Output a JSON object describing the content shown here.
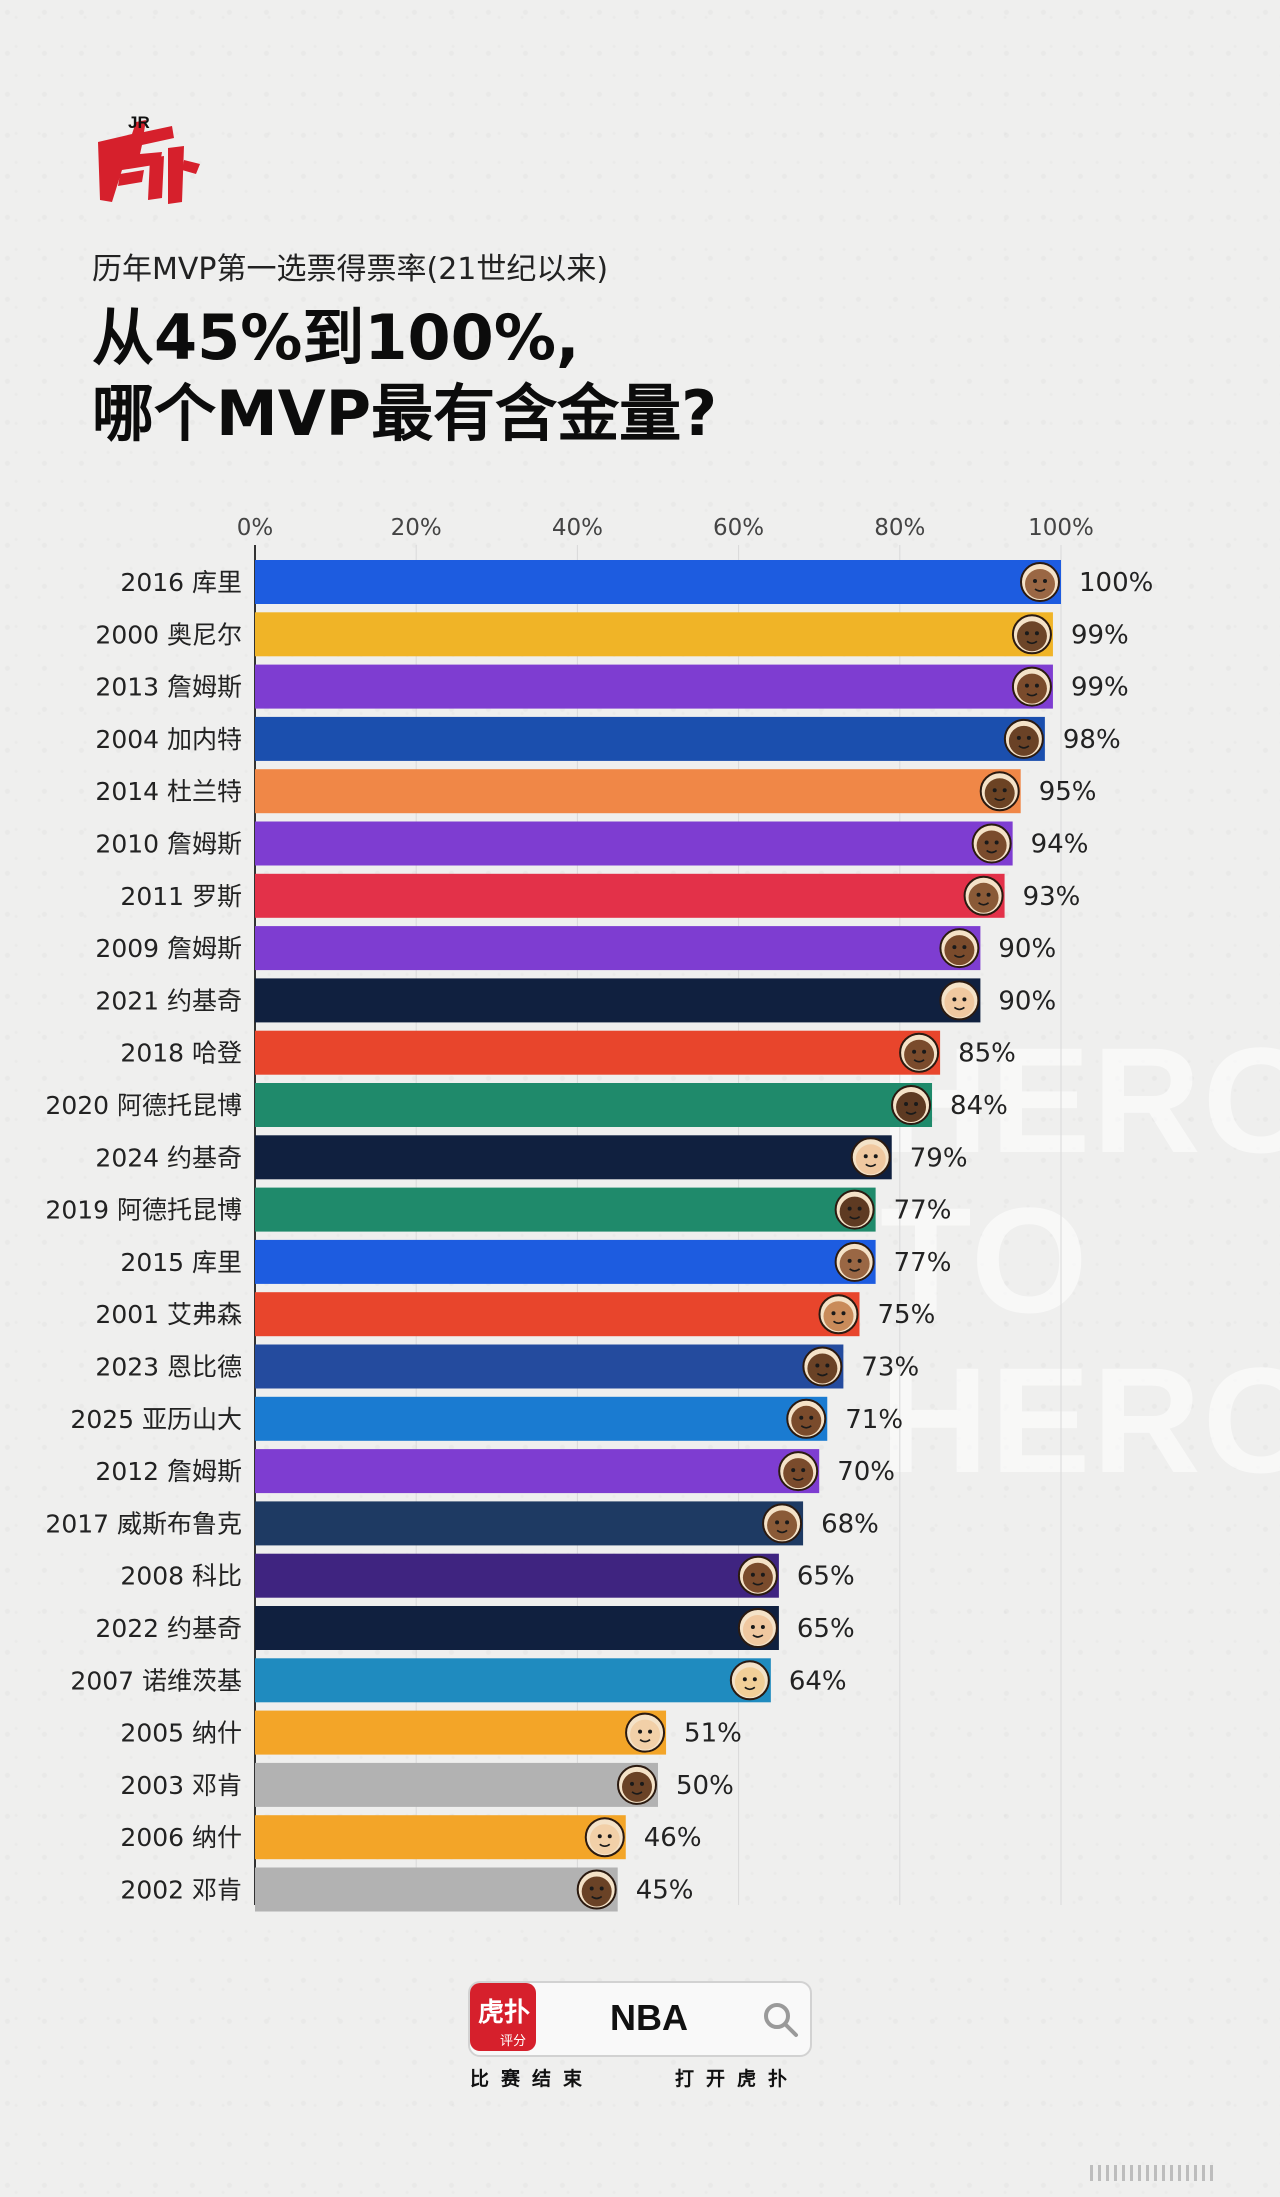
{
  "brand": {
    "logo_text": "虎扑",
    "logo_superscript": "JR"
  },
  "subtitle": "历年MVP第一选票得票率(21世纪以来)",
  "title_lines": [
    "从45%到100%,",
    "哪个MVP最有含金量?"
  ],
  "watermark_lines": [
    "HERO",
    "TO",
    "HERO"
  ],
  "chart_data": {
    "type": "bar",
    "orientation": "horizontal",
    "title": "历年MVP第一选票得票率(21世纪以来)",
    "xlim": [
      0,
      100
    ],
    "x_tick_labels": [
      "0%",
      "20%",
      "40%",
      "60%",
      "80%",
      "100%"
    ],
    "x_ticks": [
      0,
      20,
      40,
      60,
      80,
      100
    ],
    "grid": true,
    "categories": [
      "2016 库里",
      "2000 奥尼尔",
      "2013 詹姆斯",
      "2004 加内特",
      "2014 杜兰特",
      "2010 詹姆斯",
      "2011 罗斯",
      "2009 詹姆斯",
      "2021 约基奇",
      "2018 哈登",
      "2020 阿德托昆博",
      "2024 约基奇",
      "2019 阿德托昆博",
      "2015 库里",
      "2001 艾弗森",
      "2023 恩比德",
      "2025 亚历山大",
      "2012 詹姆斯",
      "2017 威斯布鲁克",
      "2008 科比",
      "2022 约基奇",
      "2007 诺维茨基",
      "2005 纳什",
      "2003 邓肯",
      "2006 纳什",
      "2002 邓肯"
    ],
    "values": [
      100,
      99,
      99,
      98,
      95,
      94,
      93,
      90,
      90,
      85,
      84,
      79,
      77,
      77,
      75,
      73,
      71,
      70,
      68,
      65,
      65,
      64,
      51,
      50,
      46,
      45
    ],
    "value_labels": [
      "100%",
      "99%",
      "99%",
      "98%",
      "95%",
      "94%",
      "93%",
      "90%",
      "90%",
      "85%",
      "84%",
      "79%",
      "77%",
      "77%",
      "75%",
      "73%",
      "71%",
      "70%",
      "68%",
      "65%",
      "65%",
      "64%",
      "51%",
      "50%",
      "46%",
      "45%"
    ],
    "bar_colors": [
      "#1d5ce0",
      "#f0b427",
      "#7e3dd1",
      "#1b4fae",
      "#f08747",
      "#7e3dd1",
      "#e33149",
      "#7e3dd1",
      "#10203f",
      "#e8452c",
      "#1f8a6b",
      "#10203f",
      "#1f8a6b",
      "#1d5ce0",
      "#e8452c",
      "#244b9e",
      "#1a7bd1",
      "#7e3dd1",
      "#1e3a63",
      "#3f2480",
      "#10203f",
      "#1f8bbf",
      "#f3a528",
      "#b2b2b2",
      "#f3a528",
      "#b2b2b2"
    ],
    "avatar_skin": [
      "#9a6744",
      "#6d4528",
      "#7a4b2c",
      "#6a4226",
      "#6c4324",
      "#7a4b2c",
      "#8a5a37",
      "#7a4b2c",
      "#f0c8a0",
      "#7a4b2c",
      "#5e3a22",
      "#f0c8a0",
      "#5e3a22",
      "#9a6744",
      "#c98b5a",
      "#6a4226",
      "#7a4b2c",
      "#7a4b2c",
      "#8a5a37",
      "#7a4b2c",
      "#f0c8a0",
      "#f2cf98",
      "#f2d0a8",
      "#6a4226",
      "#f2d0a8",
      "#6a4226"
    ]
  },
  "footer": {
    "app_logo_text": "虎扑",
    "app_logo_sub": "评分",
    "search_text": "NBA",
    "caption_left": "比赛结束",
    "caption_right": "打开虎扑"
  },
  "icons": [
    "search-icon",
    "more-options-icon"
  ]
}
